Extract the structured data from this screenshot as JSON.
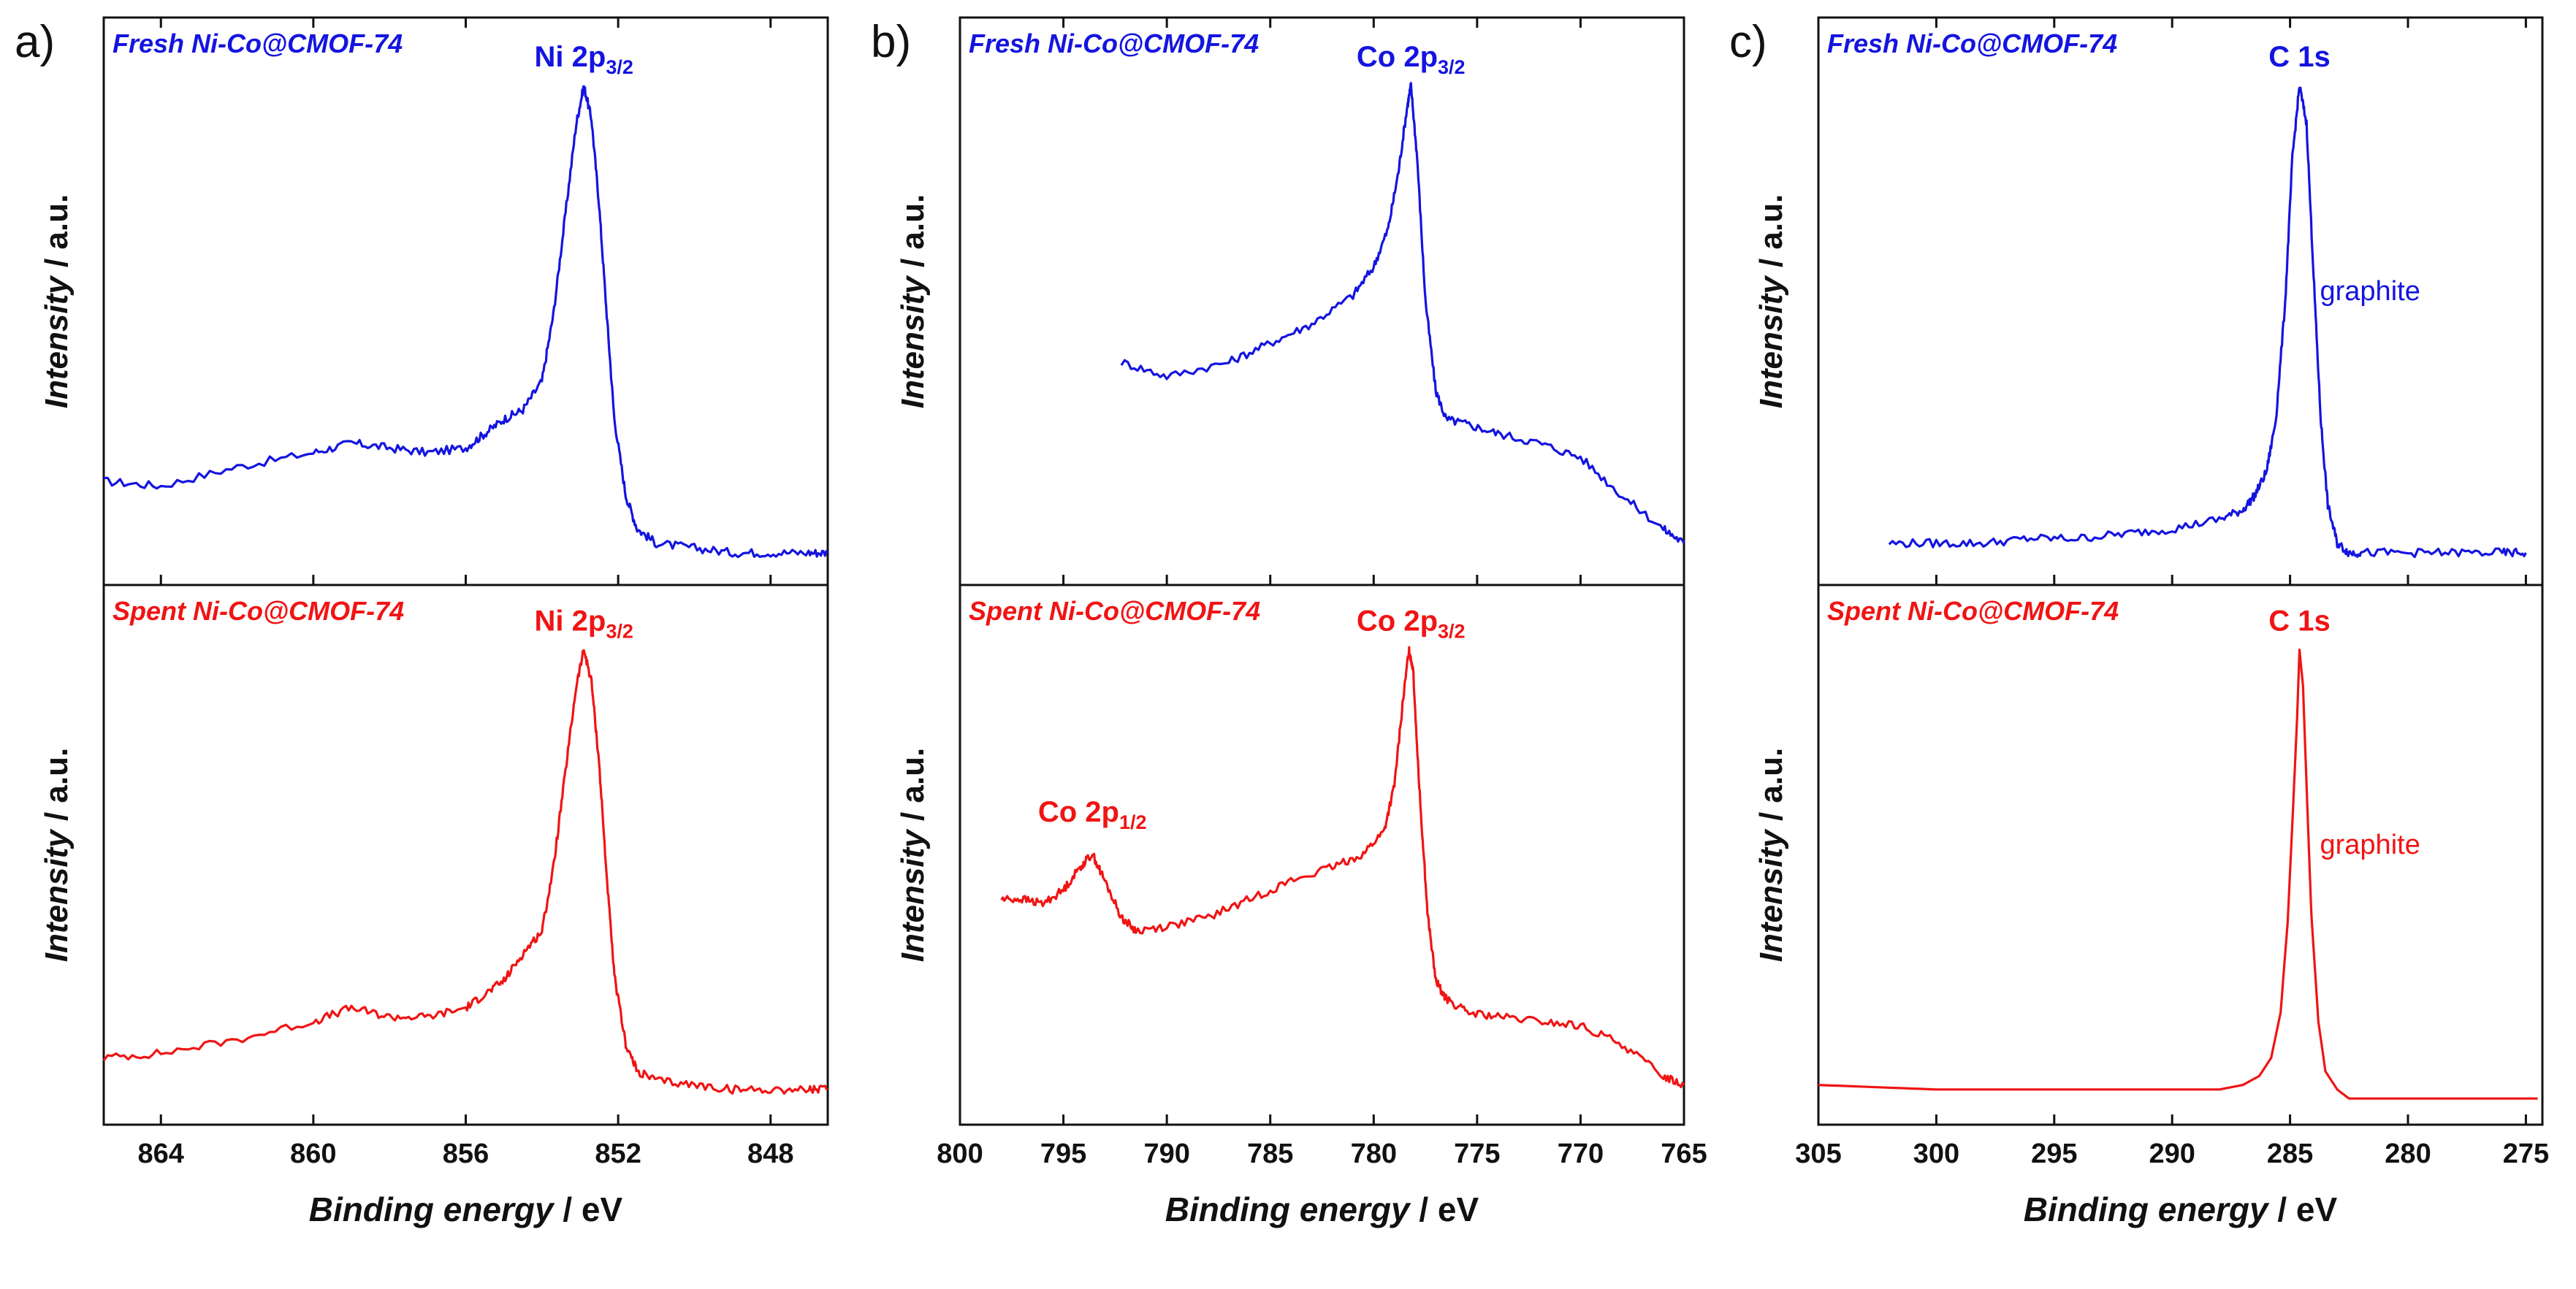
{
  "figure": {
    "ylabel_italic": "Intensity",
    "ylabel_unit": " / a.u.",
    "xlabel_italic": "Binding energy",
    "xlabel_unit": " / eV",
    "colors": {
      "fresh": "#1414e0",
      "spent": "#f01414",
      "axis": "#111111"
    }
  },
  "chart_data": [
    {
      "panel": "a)",
      "type": "line",
      "xlabel": "Binding energy / eV",
      "ylabel": "Intensity / a.u.",
      "xlim": [
        865.5,
        846.5
      ],
      "xticks": [
        864,
        860,
        856,
        852,
        848
      ],
      "series": [
        {
          "name": "Fresh Ni-Co@CMOF-74",
          "color": "#1414e0",
          "peak_label": {
            "main": "Ni 2p",
            "sub": "3/2",
            "x": 852.9
          },
          "x": [
            865.5,
            864,
            862,
            860,
            859,
            858,
            857,
            856,
            855.5,
            855,
            854.5,
            854.0,
            853.7,
            853.4,
            853.1,
            852.9,
            852.7,
            852.5,
            852.3,
            852.1,
            851.8,
            851.5,
            851,
            850,
            849,
            848,
            847,
            846.5
          ],
          "y": [
            0.17,
            0.16,
            0.2,
            0.23,
            0.25,
            0.24,
            0.23,
            0.24,
            0.27,
            0.3,
            0.32,
            0.38,
            0.52,
            0.72,
            0.92,
            1.0,
            0.93,
            0.75,
            0.52,
            0.3,
            0.14,
            0.07,
            0.04,
            0.03,
            0.02,
            0.02,
            0.02,
            0.02
          ]
        },
        {
          "name": "Spent Ni-Co@CMOF-74",
          "color": "#f01414",
          "peak_label": {
            "main": "Ni 2p",
            "sub": "3/2",
            "x": 852.9
          },
          "x": [
            865.5,
            864,
            862,
            860,
            859,
            858,
            857,
            856,
            855.5,
            855,
            854.5,
            854.0,
            853.7,
            853.4,
            853.1,
            852.9,
            852.7,
            852.5,
            852.3,
            852.1,
            851.8,
            851.5,
            851,
            850,
            849,
            848,
            847,
            846.5
          ],
          "y": [
            0.1,
            0.11,
            0.14,
            0.18,
            0.21,
            0.19,
            0.19,
            0.21,
            0.24,
            0.27,
            0.33,
            0.38,
            0.52,
            0.72,
            0.92,
            1.0,
            0.93,
            0.75,
            0.5,
            0.28,
            0.13,
            0.07,
            0.05,
            0.04,
            0.03,
            0.03,
            0.03,
            0.03
          ]
        }
      ]
    },
    {
      "panel": "b)",
      "type": "line",
      "xlabel": "Binding energy / eV",
      "ylabel": "Intensity / a.u.",
      "xlim": [
        800,
        765
      ],
      "xticks": [
        800,
        795,
        790,
        785,
        780,
        775,
        770,
        765
      ],
      "series": [
        {
          "name": "Fresh Ni-Co@CMOF-74",
          "color": "#1414e0",
          "peak_label": {
            "main": "Co 2p",
            "sub": "3/2",
            "x": 778.2
          },
          "x": [
            792.2,
            790,
            787,
            785,
            783,
            781,
            780,
            779.3,
            778.8,
            778.4,
            778.2,
            777.9,
            777.5,
            777,
            776.5,
            775.5,
            774,
            772,
            770,
            768,
            766,
            765
          ],
          "y": [
            0.42,
            0.39,
            0.42,
            0.46,
            0.5,
            0.56,
            0.62,
            0.7,
            0.82,
            0.95,
            1.0,
            0.85,
            0.55,
            0.36,
            0.3,
            0.29,
            0.27,
            0.25,
            0.22,
            0.14,
            0.07,
            0.04
          ]
        },
        {
          "name": "Spent Ni-Co@CMOF-74",
          "color": "#f01414",
          "peak_label": {
            "main": "Co 2p",
            "sub": "3/2",
            "x": 778.2
          },
          "extra_label": {
            "main": "Co 2p",
            "sub": "1/2",
            "x": 793.6
          },
          "x": [
            798,
            797,
            796,
            795,
            794.2,
            793.6,
            793,
            792.2,
            791.5,
            790,
            788,
            786,
            784,
            782,
            780.5,
            779.5,
            779,
            778.6,
            778.3,
            778.1,
            777.8,
            777.4,
            777,
            776.5,
            775.5,
            774,
            772,
            770,
            768,
            766,
            765
          ],
          "y": [
            0.45,
            0.45,
            0.44,
            0.47,
            0.52,
            0.55,
            0.49,
            0.41,
            0.38,
            0.39,
            0.41,
            0.45,
            0.49,
            0.52,
            0.55,
            0.6,
            0.7,
            0.88,
            1.0,
            0.96,
            0.7,
            0.42,
            0.27,
            0.23,
            0.2,
            0.19,
            0.18,
            0.17,
            0.13,
            0.06,
            0.04
          ]
        }
      ]
    },
    {
      "panel": "c)",
      "type": "line",
      "xlabel": "Binding energy / eV",
      "ylabel": "Intensity / a.u.",
      "xlim": [
        305,
        274.3
      ],
      "xticks": [
        305,
        300,
        295,
        290,
        285,
        280,
        275
      ],
      "series": [
        {
          "name": "Fresh Ni-Co@CMOF-74",
          "color": "#1414e0",
          "peak_label": {
            "main": "C 1s",
            "sub": "",
            "x": 284.6
          },
          "annotation": "graphite",
          "x": [
            302,
            300,
            298,
            296,
            294,
            292,
            290,
            288,
            287,
            286.5,
            286,
            285.6,
            285.2,
            284.9,
            284.6,
            284.3,
            284.0,
            283.7,
            283.4,
            283.0,
            282.5,
            282,
            280,
            278,
            276,
            275
          ],
          "y": [
            0.04,
            0.04,
            0.04,
            0.05,
            0.05,
            0.06,
            0.07,
            0.09,
            0.11,
            0.14,
            0.19,
            0.3,
            0.55,
            0.85,
            1.0,
            0.92,
            0.6,
            0.3,
            0.12,
            0.04,
            0.02,
            0.02,
            0.02,
            0.02,
            0.02,
            0.02
          ]
        },
        {
          "name": "Spent Ni-Co@CMOF-74",
          "color": "#f01414",
          "peak_label": {
            "main": "C 1s",
            "sub": "",
            "x": 284.6
          },
          "annotation": "graphite",
          "x": [
            305,
            300,
            295,
            290,
            288,
            287,
            286.3,
            285.8,
            285.4,
            285.1,
            284.9,
            284.7,
            284.6,
            284.45,
            284.3,
            284.1,
            283.8,
            283.5,
            283.0,
            282.5,
            282,
            280,
            277,
            274.5
          ],
          "y": [
            0.04,
            0.03,
            0.03,
            0.03,
            0.03,
            0.04,
            0.06,
            0.1,
            0.2,
            0.4,
            0.62,
            0.85,
            1.0,
            0.92,
            0.7,
            0.42,
            0.18,
            0.07,
            0.03,
            0.01,
            0.01,
            0.01,
            0.01,
            0.01
          ]
        }
      ]
    }
  ]
}
